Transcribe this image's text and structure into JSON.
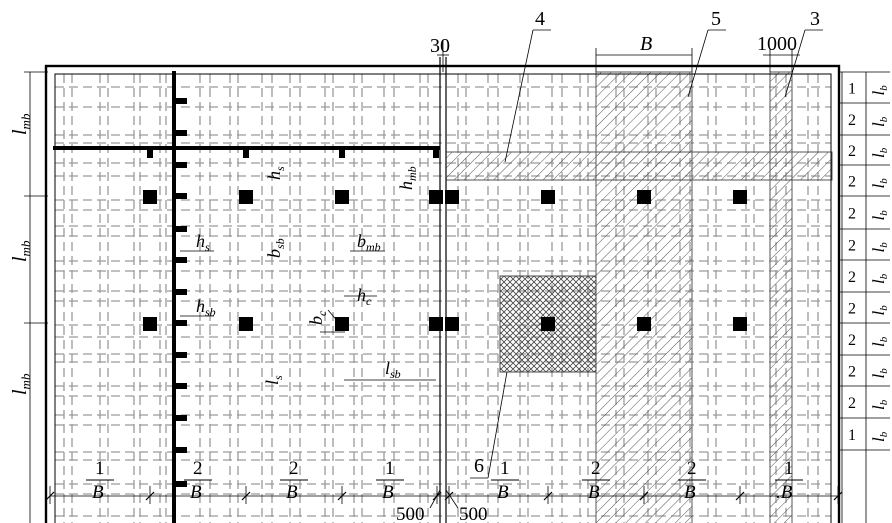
{
  "callouts": {
    "top_30": "30",
    "c4": "4",
    "c5": "5",
    "c3": "3",
    "c6": "6",
    "dim_B": "B",
    "dim_1000": "1000"
  },
  "symbols": {
    "lmb": {
      "main": "l",
      "sub": "mb"
    },
    "hs": {
      "main": "h",
      "sub": "s"
    },
    "hsb": {
      "main": "h",
      "sub": "sb"
    },
    "bsb": {
      "main": "b",
      "sub": "sb"
    },
    "bmb": {
      "main": "b",
      "sub": "mb"
    },
    "bc": {
      "main": "b",
      "sub": "c"
    },
    "hc": {
      "main": "h",
      "sub": "c"
    },
    "ls": {
      "main": "l",
      "sub": "s"
    },
    "lsb": {
      "main": "l",
      "sub": "sb"
    },
    "hmb": {
      "main": "h",
      "sub": "mb"
    },
    "lb": {
      "main": "l",
      "sub": "b"
    }
  },
  "bottom_dims": {
    "spans": [
      {
        "num": "1",
        "unit": "B"
      },
      {
        "num": "2",
        "unit": "B"
      },
      {
        "num": "2",
        "unit": "B"
      },
      {
        "num": "1",
        "unit": "B"
      },
      {
        "num": "1",
        "unit": "B"
      },
      {
        "num": "2",
        "unit": "B"
      },
      {
        "num": "2",
        "unit": "B"
      },
      {
        "num": "1",
        "unit": ".B"
      }
    ],
    "offset_left": "500",
    "offset_right": "500"
  },
  "right_dims": {
    "rows": [
      "1",
      "2",
      "2",
      "2",
      "2",
      "2",
      "2",
      "2",
      "2",
      "2",
      "2",
      "1"
    ]
  },
  "colors": {
    "ink": "#000000",
    "dash": "#9a9a9a",
    "background": "#ffffff"
  }
}
